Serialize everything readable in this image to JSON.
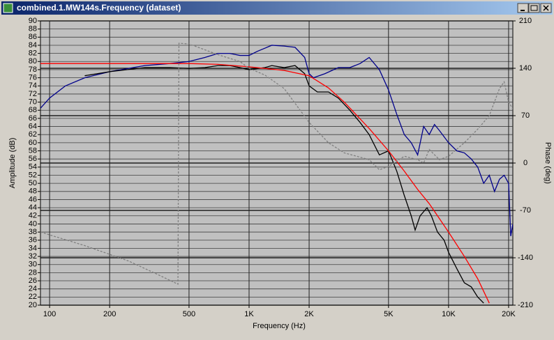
{
  "chart_data": {
    "type": "line",
    "title": "combined.1.MW144s.Frequency (dataset)",
    "x_label": "Frequency (Hz)",
    "y_label": "Amplitude (dB)",
    "y2_label": "Phase (deg)",
    "x_log": true,
    "grid": true,
    "xlim": [
      90,
      21000
    ],
    "xticks": [
      100,
      200,
      500,
      {
        "value": 1000,
        "label": "1K"
      },
      {
        "value": 2000,
        "label": "2K"
      },
      {
        "value": 5000,
        "label": "5K"
      },
      {
        "value": 10000,
        "label": "10K"
      },
      {
        "value": 20000,
        "label": "20K"
      }
    ],
    "ylim": [
      20,
      90
    ],
    "yticks": [
      20,
      22,
      24,
      26,
      28,
      30,
      32,
      34,
      36,
      38,
      40,
      42,
      44,
      46,
      48,
      50,
      52,
      54,
      56,
      58,
      60,
      62,
      64,
      66,
      68,
      70,
      72,
      74,
      76,
      78,
      80,
      82,
      84,
      86,
      88,
      90
    ],
    "y2lim": [
      -210,
      210
    ],
    "y2ticks": [
      -210,
      -140,
      -70,
      0,
      70,
      140,
      210
    ],
    "series": [
      {
        "color": "#00008b",
        "dash": false,
        "x": [
          90,
          100,
          120,
          150,
          200,
          300,
          400,
          500,
          600,
          700,
          800,
          900,
          1000,
          1100,
          1300,
          1500,
          1700,
          1900,
          2000,
          2100,
          2400,
          2800,
          3200,
          3600,
          4000,
          4500,
          5000,
          5500,
          6000,
          6500,
          7000,
          7500,
          8000,
          8500,
          9000,
          10000,
          11000,
          12000,
          13000,
          14000,
          15000,
          16000,
          17000,
          18000,
          19000,
          20000,
          20500,
          21000
        ],
        "values": [
          68.5,
          71,
          74,
          76,
          77.5,
          79,
          79.5,
          80,
          81,
          82,
          82,
          81.5,
          81.5,
          82.5,
          84,
          83.8,
          83.5,
          81,
          77,
          76,
          77,
          78.5,
          78.5,
          79.5,
          81,
          78,
          73,
          67,
          62,
          60,
          57,
          64,
          62,
          64.5,
          63,
          60,
          58,
          57.5,
          56,
          54,
          50,
          52,
          48,
          51,
          52,
          50,
          37,
          40
        ]
      },
      {
        "color": "#000000",
        "dash": false,
        "x": [
          150,
          200,
          300,
          400,
          500,
          600,
          700,
          800,
          900,
          1000,
          1200,
          1300,
          1500,
          1700,
          1900,
          2000,
          2200,
          2500,
          2800,
          3200,
          3600,
          4000,
          4500,
          5000,
          5500,
          6000,
          6500,
          6800,
          7200,
          7800,
          8200,
          8800,
          9500,
          10000,
          11000,
          12000,
          13000,
          14000,
          15000
        ],
        "values": [
          76.5,
          77.5,
          78.5,
          78.5,
          78.3,
          78.5,
          79,
          79,
          78.5,
          78,
          78.5,
          79,
          78.5,
          79,
          77,
          74,
          72.5,
          72.5,
          71,
          68,
          65,
          62,
          57,
          58,
          53,
          47,
          42,
          38.5,
          42,
          44,
          42,
          38,
          36,
          33,
          29,
          25.5,
          24.5,
          22,
          20.5
        ]
      },
      {
        "color": "#ff0000",
        "dash": false,
        "x": [
          90,
          200,
          500,
          700,
          1000,
          1500,
          2000,
          2500,
          3000,
          4000,
          5000,
          6000,
          7000,
          8000,
          10000,
          12000,
          14000,
          16000
        ],
        "values": [
          79.5,
          79.5,
          79.5,
          79.3,
          78.7,
          77.8,
          76.5,
          73.5,
          70,
          63.5,
          58,
          53,
          48.5,
          45,
          38,
          32,
          26.5,
          20.5
        ]
      },
      {
        "color": "#808080",
        "dash": true,
        "axis": "y2",
        "x": [
          90,
          150,
          250,
          350,
          440,
          445,
          500,
          700,
          900,
          1000,
          1200,
          1500,
          2000,
          2500,
          3000,
          4000,
          4500,
          5000,
          6000,
          7000,
          7500,
          8000,
          9000,
          10000,
          12000,
          14000,
          16000,
          18000,
          19000,
          20000,
          21000
        ],
        "values": [
          -102,
          -122,
          -145,
          -165,
          -179,
          177,
          176,
          160,
          150,
          140,
          130,
          110,
          60,
          30,
          15,
          5,
          -10,
          -5,
          10,
          5,
          0,
          20,
          5,
          10,
          30,
          50,
          70,
          110,
          120,
          90,
          80
        ]
      }
    ]
  }
}
